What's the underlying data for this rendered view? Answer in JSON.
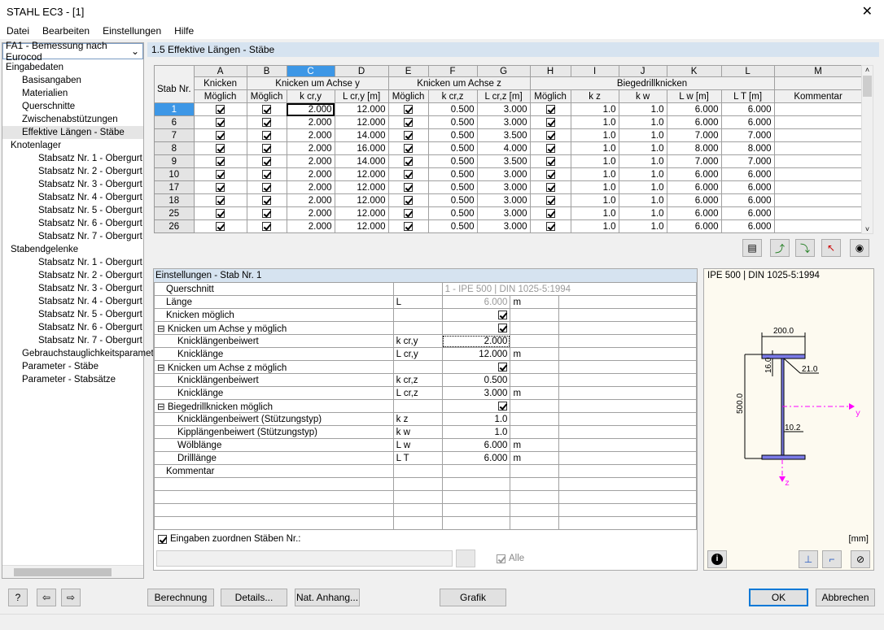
{
  "window": {
    "title": "STAHL EC3 - [1]",
    "close": "✕"
  },
  "menu": [
    "Datei",
    "Bearbeiten",
    "Einstellungen",
    "Hilfe"
  ],
  "case_select": "FA1 - Bemessung nach Eurocod",
  "tree": [
    {
      "label": "Eingabedaten",
      "level": 0
    },
    {
      "label": "Basisangaben",
      "level": 1
    },
    {
      "label": "Materialien",
      "level": 1
    },
    {
      "label": "Querschnitte",
      "level": 1
    },
    {
      "label": "Zwischenabstützungen",
      "level": 1
    },
    {
      "label": "Effektive Längen - Stäbe",
      "level": 1,
      "selected": true
    },
    {
      "label": "Knotenlager",
      "level": 0,
      "expander": "⊟"
    },
    {
      "label": "Stabsatz Nr. 1 - Obergurt",
      "level": 2
    },
    {
      "label": "Stabsatz Nr. 2 - Obergurt",
      "level": 2
    },
    {
      "label": "Stabsatz Nr. 3 - Obergurt",
      "level": 2
    },
    {
      "label": "Stabsatz Nr. 4 - Obergurt",
      "level": 2
    },
    {
      "label": "Stabsatz Nr. 5 - Obergurt",
      "level": 2
    },
    {
      "label": "Stabsatz Nr. 6 - Obergurt",
      "level": 2
    },
    {
      "label": "Stabsatz Nr. 7 - Obergurt",
      "level": 2
    },
    {
      "label": "Stabendgelenke",
      "level": 0,
      "expander": "⊟"
    },
    {
      "label": "Stabsatz Nr. 1 - Obergurt",
      "level": 2
    },
    {
      "label": "Stabsatz Nr. 2 - Obergurt",
      "level": 2
    },
    {
      "label": "Stabsatz Nr. 3 - Obergurt",
      "level": 2
    },
    {
      "label": "Stabsatz Nr. 4 - Obergurt",
      "level": 2
    },
    {
      "label": "Stabsatz Nr. 5 - Obergurt",
      "level": 2
    },
    {
      "label": "Stabsatz Nr. 6 - Obergurt",
      "level": 2
    },
    {
      "label": "Stabsatz Nr. 7 - Obergurt",
      "level": 2
    },
    {
      "label": "Gebrauchstauglichkeitsparamet",
      "level": 1
    },
    {
      "label": "Parameter - Stäbe",
      "level": 1
    },
    {
      "label": "Parameter - Stabsätze",
      "level": 1
    }
  ],
  "section_title": "1.5 Effektive Längen - Stäbe",
  "table": {
    "letters": [
      "A",
      "B",
      "C",
      "D",
      "E",
      "F",
      "G",
      "H",
      "I",
      "J",
      "K",
      "L",
      "M"
    ],
    "stab_header": "Stab Nr.",
    "groups": {
      "knicken": "Knicken",
      "achse_y": "Knicken um Achse y",
      "achse_z": "Knicken um Achse z",
      "bdk": "Biegedrillknicken"
    },
    "sub": [
      "Möglich",
      "Möglich",
      "k cr,y",
      "L cr,y [m]",
      "Möglich",
      "k cr,z",
      "L cr,z [m]",
      "Möglich",
      "k z",
      "k w",
      "L w [m]",
      "L T [m]",
      "Kommentar"
    ],
    "rows": [
      {
        "nr": "1",
        "kcry": "2.000",
        "lcry": "12.000",
        "kcrz": "0.500",
        "lcrz": "3.000",
        "kz": "1.0",
        "kw": "1.0",
        "lw": "6.000",
        "lt": "6.000"
      },
      {
        "nr": "6",
        "kcry": "2.000",
        "lcry": "12.000",
        "kcrz": "0.500",
        "lcrz": "3.000",
        "kz": "1.0",
        "kw": "1.0",
        "lw": "6.000",
        "lt": "6.000"
      },
      {
        "nr": "7",
        "kcry": "2.000",
        "lcry": "14.000",
        "kcrz": "0.500",
        "lcrz": "3.500",
        "kz": "1.0",
        "kw": "1.0",
        "lw": "7.000",
        "lt": "7.000"
      },
      {
        "nr": "8",
        "kcry": "2.000",
        "lcry": "16.000",
        "kcrz": "0.500",
        "lcrz": "4.000",
        "kz": "1.0",
        "kw": "1.0",
        "lw": "8.000",
        "lt": "8.000"
      },
      {
        "nr": "9",
        "kcry": "2.000",
        "lcry": "14.000",
        "kcrz": "0.500",
        "lcrz": "3.500",
        "kz": "1.0",
        "kw": "1.0",
        "lw": "7.000",
        "lt": "7.000"
      },
      {
        "nr": "10",
        "kcry": "2.000",
        "lcry": "12.000",
        "kcrz": "0.500",
        "lcrz": "3.000",
        "kz": "1.0",
        "kw": "1.0",
        "lw": "6.000",
        "lt": "6.000"
      },
      {
        "nr": "17",
        "kcry": "2.000",
        "lcry": "12.000",
        "kcrz": "0.500",
        "lcrz": "3.000",
        "kz": "1.0",
        "kw": "1.0",
        "lw": "6.000",
        "lt": "6.000"
      },
      {
        "nr": "18",
        "kcry": "2.000",
        "lcry": "12.000",
        "kcrz": "0.500",
        "lcrz": "3.000",
        "kz": "1.0",
        "kw": "1.0",
        "lw": "6.000",
        "lt": "6.000"
      },
      {
        "nr": "25",
        "kcry": "2.000",
        "lcry": "12.000",
        "kcrz": "0.500",
        "lcrz": "3.000",
        "kz": "1.0",
        "kw": "1.0",
        "lw": "6.000",
        "lt": "6.000"
      },
      {
        "nr": "26",
        "kcry": "2.000",
        "lcry": "12.000",
        "kcrz": "0.500",
        "lcrz": "3.000",
        "kz": "1.0",
        "kw": "1.0",
        "lw": "6.000",
        "lt": "6.000"
      }
    ]
  },
  "settings": {
    "title": "Einstellungen - Stab Nr. 1",
    "rows": [
      {
        "label": "Querschnitt",
        "sym": "",
        "val": "1 - IPE 500 | DIN 1025-5:1994",
        "unit": "",
        "indent": 0,
        "gray": true,
        "span": true
      },
      {
        "label": "Länge",
        "sym": "L",
        "val": "6.000",
        "unit": "m",
        "indent": 0,
        "gray": true
      },
      {
        "label": "Knicken möglich",
        "sym": "",
        "check": true,
        "indent": 0
      },
      {
        "label": "Knicken um Achse y möglich",
        "sym": "",
        "check": true,
        "indent": 0,
        "expander": "⊟"
      },
      {
        "label": "Knicklängenbeiwert",
        "sym": "k cr,y",
        "val": "2.000",
        "indent": 1,
        "focus": true
      },
      {
        "label": "Knicklänge",
        "sym": "L cr,y",
        "val": "12.000",
        "unit": "m",
        "indent": 1
      },
      {
        "label": "Knicken um Achse z möglich",
        "sym": "",
        "check": true,
        "indent": 0,
        "expander": "⊟"
      },
      {
        "label": "Knicklängenbeiwert",
        "sym": "k cr,z",
        "val": "0.500",
        "indent": 1
      },
      {
        "label": "Knicklänge",
        "sym": "L cr,z",
        "val": "3.000",
        "unit": "m",
        "indent": 1
      },
      {
        "label": "Biegedrillknicken möglich",
        "sym": "",
        "check": true,
        "indent": 0,
        "expander": "⊟"
      },
      {
        "label": "Knicklängenbeiwert (Stützungstyp)",
        "sym": "k z",
        "val": "1.0",
        "indent": 1
      },
      {
        "label": "Kipplängenbeiwert (Stützungstyp)",
        "sym": "k w",
        "val": "1.0",
        "indent": 1
      },
      {
        "label": "Wölblänge",
        "sym": "L w",
        "val": "6.000",
        "unit": "m",
        "indent": 1
      },
      {
        "label": "Drilllänge",
        "sym": "L T",
        "val": "6.000",
        "unit": "m",
        "indent": 1
      },
      {
        "label": "Kommentar",
        "sym": "",
        "indent": 0
      }
    ],
    "assign_label": "Eingaben zuordnen Stäben Nr.:",
    "alle": "Alle"
  },
  "graphic": {
    "title": "IPE 500 | DIN 1025-5:1994",
    "unit": "[mm]",
    "dims": {
      "b": "200.0",
      "h": "500.0",
      "tf": "16.0",
      "r": "21.0",
      "tw": "10.2"
    },
    "axis_y": "y",
    "axis_z": "z",
    "section_color": "#7b7be8",
    "axis_color": "#ff00ff"
  },
  "buttons": {
    "berechnung": "Berechnung",
    "details": "Details...",
    "nat": "Nat. Anhang...",
    "grafik": "Grafik",
    "ok": "OK",
    "abbrechen": "Abbrechen"
  }
}
